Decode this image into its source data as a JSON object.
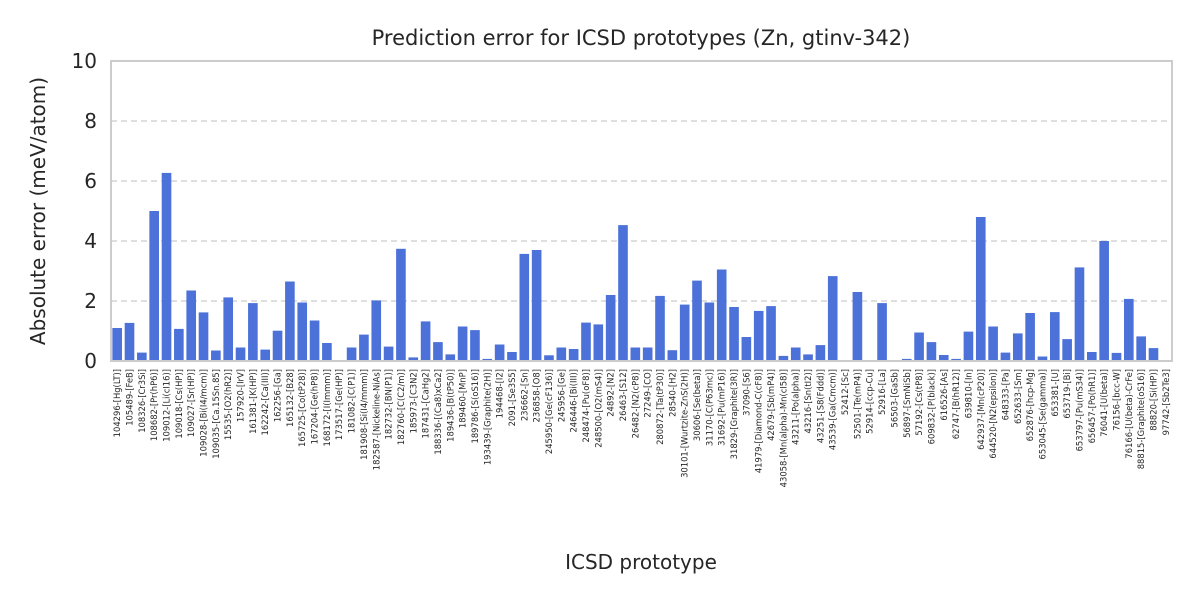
{
  "chart_data": {
    "type": "bar",
    "title": "Prediction error for ICSD prototypes (Zn, gtinv-342)",
    "xlabel": "ICSD prototype",
    "ylabel": "Absolute error (meV/atom)",
    "ylim": [
      0,
      10
    ],
    "yticks": [
      0,
      2,
      4,
      6,
      8,
      10
    ],
    "grid": true,
    "color": "#4c72d9",
    "categories": [
      "104296-[Hg(LT)]",
      "105489-[FeB]",
      "108326-[Cr3Si]",
      "108682-[Pr(hP6)]",
      "109012-[Li(cI16)]",
      "109018-[Cs(HP)]",
      "109027-[Sr(HP)]",
      "109028-[Bi(I4/mcm)]",
      "109035-[Ca.15Sn.85]",
      "15535-[O2(hR2)]",
      "157920-[IrV]",
      "161381-[K(HP)]",
      "162242-[Ca(III)]",
      "162256-[Ga]",
      "165132-[B28]",
      "165725-[Co(tP28)]",
      "167204-[Ge(hP8)]",
      "168172-[I(Immm)]",
      "173517-[Ge(HP)]",
      "181082-[C(P1)]",
      "181908-[Si(I4/mmm)]",
      "182587-[Nickeline-NiAs]",
      "182732-[BN(P1)]",
      "182760-[C(C2/m)]",
      "185973-[C3N2]",
      "187431-[CaHg2]",
      "188336-[(Ca8)xCa2]",
      "189436-[B(tP50)]",
      "189460-[MnP]",
      "189786-[S(oS16)]",
      "193439-[Graphite(2H)]",
      "194468-[I2]",
      "2091-[Se3S5]",
      "236662-[Sn]",
      "236858-[O8]",
      "245950-[Ge(cF136)]",
      "245956-[Ge]",
      "246446-[Bi(III)]",
      "248474-[Pu(oF8)]",
      "248500-[O2(mS4)]",
      "24892-[N2]",
      "26463-[S12]",
      "26482-[N2(cP8)]",
      "27249-[CO]",
      "280872-[Ta(tP30)]",
      "28540-[H2]",
      "30101-[Wurtzite-ZnS(2H)]",
      "30606-[Se(beta)]",
      "31170-[C(P63mc)]",
      "31692-[Pu(mP16)]",
      "31829-[Graphite(3R)]",
      "37090-[S6]",
      "41979-[Diamond-C(cF8)]",
      "42679-[Sb(mP4)]",
      "43058-[Mn(alpha)-Mn(cI58)]",
      "43211-[Po(alpha)]",
      "43216-[Sn(tI2)]",
      "43251-[S8(Fddd)]",
      "43539-[Ga(Cmcm)]",
      "52412-[Sc]",
      "52501-[Te(mP4)]",
      "52914-[ccp-Cu]",
      "52916-[La]",
      "56503-[GaSb]",
      "56897-[SmNiSb]",
      "57192-[Cs(tP8)]",
      "609832-[P(black)]",
      "616526-[As]",
      "62747-[B(hR12)]",
      "639810-[In]",
      "642937-[Mn(cP20)]",
      "644520-[N2(epsilon)]",
      "648333-[Pa]",
      "652633-[Sm]",
      "652876-[hcp-Mg]",
      "653045-[Se(gamma)]",
      "653381-[U]",
      "653719-[Bi]",
      "653797-[Pu(mS34)]",
      "656457-[Po(hR1)]",
      "76041-[U(beta)]",
      "76156-[bcc-W]",
      "76166-[U(beta)-CrFe]",
      "88815-[Graphite(oS16)]",
      "88820-[Si(HP)]",
      "97742-[Sb2Te3]"
    ],
    "values": [
      1.1,
      1.27,
      0.28,
      5.0,
      6.27,
      1.07,
      2.35,
      1.62,
      0.35,
      2.12,
      0.45,
      1.93,
      0.38,
      1.01,
      2.65,
      1.95,
      1.35,
      0.6,
      0.0,
      0.45,
      0.88,
      2.02,
      0.48,
      3.74,
      0.12,
      1.32,
      0.63,
      0.22,
      1.15,
      1.03,
      0.07,
      0.55,
      0.3,
      3.57,
      3.7,
      0.19,
      0.45,
      0.4,
      1.28,
      1.22,
      2.2,
      4.53,
      0.45,
      0.45,
      2.17,
      0.36,
      1.88,
      2.68,
      1.95,
      3.05,
      1.8,
      0.8,
      1.67,
      1.83,
      0.17,
      0.45,
      0.22,
      0.53,
      2.83,
      0.0,
      2.3,
      0.0,
      1.93,
      0.0,
      0.07,
      0.95,
      0.63,
      0.2,
      0.07,
      0.98,
      4.8,
      1.15,
      0.28,
      0.92,
      1.6,
      0.15,
      1.63,
      0.73,
      3.12,
      0.3,
      4.0,
      0.27,
      2.07,
      0.82,
      0.43,
      0.0
    ]
  }
}
